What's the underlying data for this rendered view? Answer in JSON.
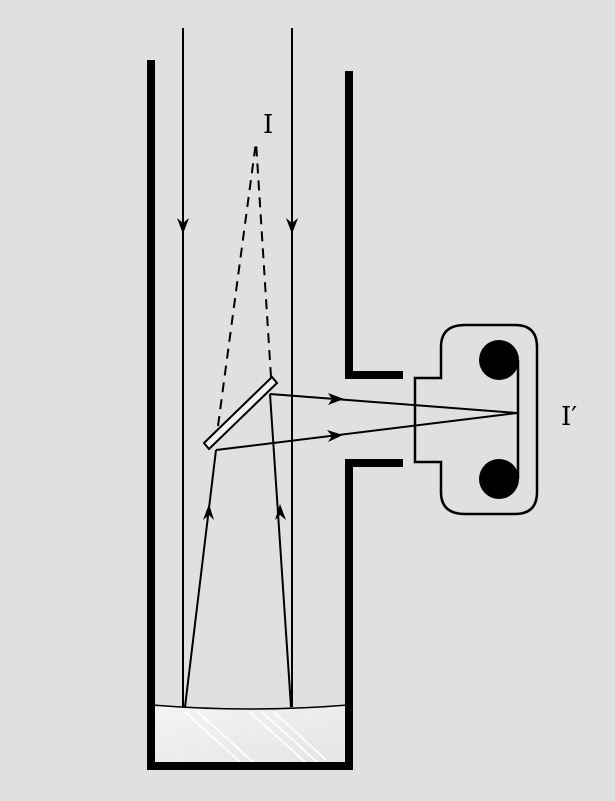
{
  "labels": {
    "image": "I",
    "image_prime": "I′"
  },
  "colors": {
    "background": "#e0e0e0",
    "ink": "#000000",
    "mirror_fill": "#f2f2f2",
    "glass_fill": "#ececec"
  }
}
